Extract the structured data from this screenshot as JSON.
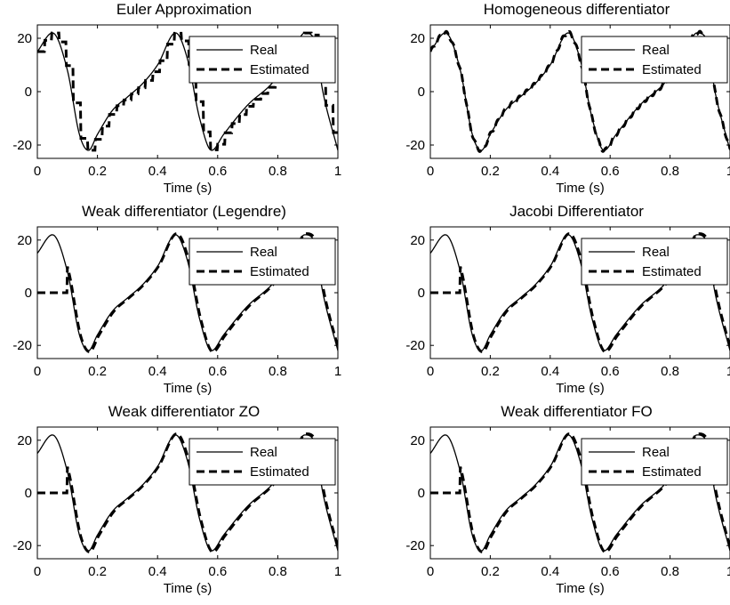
{
  "chart_data": [
    {
      "type": "line",
      "title": "Euler Approximation",
      "xlabel": "Time (s)",
      "ylabel": "",
      "xlim": [
        0,
        1
      ],
      "ylim": [
        -25,
        25
      ],
      "xticks": [
        "0",
        "0.2",
        "0.4",
        "0.6",
        "0.8",
        "1"
      ],
      "yticks": [
        "-20",
        "0",
        "20"
      ],
      "legend": {
        "position": "top-right",
        "entries": [
          "Real",
          "Estimated"
        ]
      },
      "series": [
        {
          "name": "Real",
          "style": "solid"
        },
        {
          "name": "Estimated",
          "style": "dashed",
          "estimate": "euler"
        }
      ]
    },
    {
      "type": "line",
      "title": "Homogeneous differentiator",
      "xlabel": "Time (s)",
      "ylabel": "",
      "xlim": [
        0,
        1
      ],
      "ylim": [
        -25,
        25
      ],
      "xticks": [
        "0",
        "0.2",
        "0.4",
        "0.6",
        "0.8",
        "1"
      ],
      "yticks": [
        "-20",
        "0",
        "20"
      ],
      "legend": {
        "position": "top-right",
        "entries": [
          "Real",
          "Estimated"
        ]
      },
      "series": [
        {
          "name": "Real",
          "style": "solid"
        },
        {
          "name": "Estimated",
          "style": "dashed",
          "estimate": "homogeneous"
        }
      ]
    },
    {
      "type": "line",
      "title": "Weak differentiator (Legendre)",
      "xlabel": "Time (s)",
      "ylabel": "",
      "xlim": [
        0,
        1
      ],
      "ylim": [
        -25,
        25
      ],
      "xticks": [
        "0",
        "0.2",
        "0.4",
        "0.6",
        "0.8",
        "1"
      ],
      "yticks": [
        "-20",
        "0",
        "20"
      ],
      "legend": {
        "position": "top-right",
        "entries": [
          "Real",
          "Estimated"
        ]
      },
      "series": [
        {
          "name": "Real",
          "style": "solid"
        },
        {
          "name": "Estimated",
          "style": "dashed",
          "estimate": "delayed",
          "delay": 0.1,
          "initial_value": 0
        }
      ]
    },
    {
      "type": "line",
      "title": "Jacobi Differentiator",
      "xlabel": "Time (s)",
      "ylabel": "",
      "xlim": [
        0,
        1
      ],
      "ylim": [
        -25,
        25
      ],
      "xticks": [
        "0",
        "0.2",
        "0.4",
        "0.6",
        "0.8",
        "1"
      ],
      "yticks": [
        "-20",
        "0",
        "20"
      ],
      "legend": {
        "position": "top-right",
        "entries": [
          "Real",
          "Estimated"
        ]
      },
      "series": [
        {
          "name": "Real",
          "style": "solid"
        },
        {
          "name": "Estimated",
          "style": "dashed",
          "estimate": "delayed",
          "delay": 0.1,
          "initial_value": 0
        }
      ]
    },
    {
      "type": "line",
      "title": "Weak differentiator ZO",
      "xlabel": "Time (s)",
      "ylabel": "",
      "xlim": [
        0,
        1
      ],
      "ylim": [
        -25,
        25
      ],
      "xticks": [
        "0",
        "0.2",
        "0.4",
        "0.6",
        "0.8",
        "1"
      ],
      "yticks": [
        "-20",
        "0",
        "20"
      ],
      "legend": {
        "position": "top-right",
        "entries": [
          "Real",
          "Estimated"
        ]
      },
      "series": [
        {
          "name": "Real",
          "style": "solid"
        },
        {
          "name": "Estimated",
          "style": "dashed",
          "estimate": "delayed",
          "delay": 0.1,
          "initial_value": 0
        }
      ]
    },
    {
      "type": "line",
      "title": "Weak differentiator FO",
      "xlabel": "Time (s)",
      "ylabel": "",
      "xlim": [
        0,
        1
      ],
      "ylim": [
        -25,
        25
      ],
      "xticks": [
        "0",
        "0.2",
        "0.4",
        "0.6",
        "0.8",
        "1"
      ],
      "yticks": [
        "-20",
        "0",
        "20"
      ],
      "legend": {
        "position": "top-right",
        "entries": [
          "Real",
          "Estimated"
        ]
      },
      "series": [
        {
          "name": "Real",
          "style": "solid"
        },
        {
          "name": "Estimated",
          "style": "dashed",
          "estimate": "delayed",
          "delay": 0.1,
          "initial_value": 0
        }
      ]
    }
  ],
  "real_signal_points": {
    "t": [
      0,
      0.05,
      0.1,
      0.14,
      0.17,
      0.2,
      0.25,
      0.3,
      0.35,
      0.4,
      0.46,
      0.5,
      0.54,
      0.58,
      0.62,
      0.7,
      0.78,
      0.84,
      0.89,
      0.92,
      0.95,
      1.0
    ],
    "y": [
      15,
      22,
      8,
      -16,
      -22,
      -16,
      -7,
      -2,
      3,
      10,
      22,
      12,
      -10,
      -22,
      -16,
      -5,
      3,
      12,
      22,
      20,
      0,
      -22
    ]
  }
}
